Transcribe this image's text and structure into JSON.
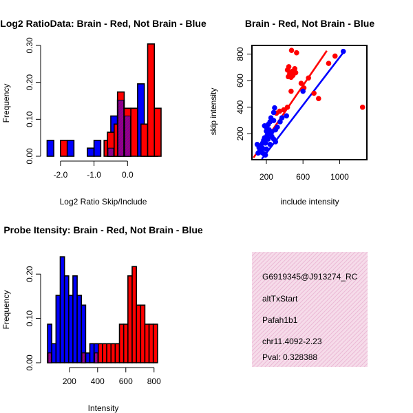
{
  "chart_data": [
    {
      "type": "bar",
      "title": "Log2 RatioData: Brain - Red, Not Brain - Blue",
      "xlabel": "Log2 Ratio Skip/Include",
      "ylabel": "Frequency",
      "xlim": [
        -2.45,
        1.0
      ],
      "ylim": [
        0,
        0.3
      ],
      "xticks": [
        -2.0,
        -1.0,
        0.0
      ],
      "xtick_labels": [
        "-2.0",
        "-1.0",
        "0.0"
      ],
      "yticks": [
        0.0,
        0.1,
        0.2,
        0.3
      ],
      "ytick_labels": [
        "0.00",
        "0.10",
        "0.20",
        "0.30"
      ],
      "bin_width": 0.2,
      "series": [
        {
          "name": "Not Brain",
          "color": "#0000ff",
          "bins": [
            [
              -2.4,
              0.043
            ],
            [
              -1.8,
              0.043
            ],
            [
              -1.2,
              0.022
            ],
            [
              -1.0,
              0.043
            ],
            [
              -0.6,
              0.022
            ],
            [
              -0.5,
              0.109
            ],
            [
              -0.3,
              0.152
            ],
            [
              -0.1,
              0.109
            ],
            [
              0.3,
              0.196
            ],
            [
              0.5,
              0.087
            ],
            [
              0.7,
              0.022
            ]
          ]
        },
        {
          "name": "Brain",
          "color": "#ff0000",
          "bins": [
            [
              -2.0,
              0.043
            ],
            [
              -0.7,
              0.043
            ],
            [
              -0.6,
              0.065
            ],
            [
              -0.4,
              0.087
            ],
            [
              -0.3,
              0.174
            ],
            [
              -0.1,
              0.13
            ],
            [
              0.1,
              0.13
            ],
            [
              0.4,
              0.087
            ],
            [
              0.6,
              0.304
            ],
            [
              0.8,
              0.13
            ]
          ]
        }
      ]
    },
    {
      "type": "scatter",
      "title": "Brain - Red, Not Brain - Blue",
      "xlabel": "include intensity",
      "ylabel": "skip intensity",
      "xlim": [
        50,
        1290
      ],
      "ylim": [
        10,
        860
      ],
      "xticks": [
        200,
        600,
        1000
      ],
      "xtick_labels": [
        "200",
        "600",
        "1000"
      ],
      "yticks": [
        200,
        400,
        600,
        800
      ],
      "ytick_labels": [
        "200",
        "400",
        "600",
        "800"
      ],
      "fit_lines": [
        {
          "name": "Brain fit",
          "color": "#ff0000",
          "from": [
            60,
            20
          ],
          "to": [
            860,
            825
          ]
        },
        {
          "name": "Not Brain fit",
          "color": "#0000ff",
          "from": [
            150,
            10
          ],
          "to": [
            1060,
            830
          ]
        }
      ],
      "series": [
        {
          "name": "Brain",
          "color": "#ff0000",
          "points": [
            [
              475,
              828
            ],
            [
              530,
              810
            ],
            [
              445,
              705
            ],
            [
              430,
              680
            ],
            [
              480,
              670
            ],
            [
              510,
              690
            ],
            [
              520,
              660
            ],
            [
              455,
              655
            ],
            [
              440,
              630
            ],
            [
              470,
              625
            ],
            [
              490,
              640
            ],
            [
              580,
              580
            ],
            [
              610,
              545
            ],
            [
              470,
              520
            ],
            [
              430,
              400
            ],
            [
              390,
              380
            ],
            [
              345,
              370
            ],
            [
              310,
              355
            ],
            [
              720,
              505
            ],
            [
              770,
              465
            ],
            [
              880,
              730
            ],
            [
              950,
              785
            ],
            [
              1250,
              400
            ],
            [
              660,
              620
            ]
          ]
        },
        {
          "name": "Not Brain",
          "color": "#0000ff",
          "points": [
            [
              1040,
              820
            ],
            [
              600,
              520
            ],
            [
              420,
              335
            ],
            [
              290,
              395
            ],
            [
              280,
              360
            ],
            [
              250,
              320
            ],
            [
              240,
              290
            ],
            [
              220,
              270
            ],
            [
              200,
              250
            ],
            [
              230,
              230
            ],
            [
              260,
              215
            ],
            [
              210,
              190
            ],
            [
              180,
              170
            ],
            [
              170,
              150
            ],
            [
              160,
              130
            ],
            [
              140,
              110
            ],
            [
              120,
              95
            ],
            [
              130,
              75
            ],
            [
              150,
              60
            ],
            [
              170,
              50
            ],
            [
              190,
              40
            ],
            [
              110,
              55
            ],
            [
              100,
              120
            ],
            [
              300,
              230
            ],
            [
              320,
              250
            ],
            [
              280,
              300
            ],
            [
              350,
              290
            ],
            [
              370,
              320
            ],
            [
              180,
              260
            ],
            [
              200,
              220
            ],
            [
              240,
              200
            ],
            [
              260,
              180
            ],
            [
              280,
              160
            ],
            [
              220,
              160
            ],
            [
              190,
              130
            ],
            [
              160,
              90
            ],
            [
              240,
              120
            ],
            [
              300,
              140
            ],
            [
              200,
              85
            ]
          ]
        }
      ]
    },
    {
      "type": "bar",
      "title": "Probe Itensity: Brain - Red, Not Brain - Blue",
      "xlabel": "Intensity",
      "ylabel": "Frequency",
      "xlim": [
        30,
        850
      ],
      "ylim": [
        0,
        0.25
      ],
      "xticks": [
        200,
        400,
        600,
        800
      ],
      "xtick_labels": [
        "200",
        "400",
        "600",
        "800"
      ],
      "yticks": [
        0.0,
        0.1,
        0.2
      ],
      "ytick_labels": [
        "0.00",
        "0.10",
        "0.20"
      ],
      "bin_width": 30,
      "series": [
        {
          "name": "Not Brain",
          "color": "#0000ff",
          "bins": [
            [
              45,
              0.087
            ],
            [
              75,
              0.043
            ],
            [
              105,
              0.152
            ],
            [
              135,
              0.239
            ],
            [
              165,
              0.196
            ],
            [
              195,
              0.152
            ],
            [
              225,
              0.196
            ],
            [
              255,
              0.152
            ],
            [
              285,
              0.13
            ],
            [
              315,
              0.022
            ],
            [
              345,
              0.043
            ],
            [
              375,
              0.043
            ]
          ]
        },
        {
          "name": "Brain",
          "color": "#ff0000",
          "bins": [
            [
              45,
              0.022
            ],
            [
              285,
              0.022
            ],
            [
              375,
              0.022
            ],
            [
              405,
              0.043
            ],
            [
              435,
              0.043
            ],
            [
              465,
              0.043
            ],
            [
              495,
              0.043
            ],
            [
              525,
              0.043
            ],
            [
              555,
              0.087
            ],
            [
              585,
              0.087
            ],
            [
              615,
              0.196
            ],
            [
              645,
              0.217
            ],
            [
              675,
              0.13
            ],
            [
              705,
              0.13
            ],
            [
              735,
              0.087
            ],
            [
              765,
              0.087
            ],
            [
              795,
              0.087
            ]
          ]
        }
      ]
    }
  ],
  "info_panel": {
    "probe_id": "G6919345@J913274_RC",
    "event_type": "altTxStart",
    "gene": "Pafah1b1",
    "location": "chr11.4092-2.23",
    "pval": "Pval: 0.328388",
    "pval_color": "#a52a2a",
    "bg_color": "#f4dbe9"
  }
}
